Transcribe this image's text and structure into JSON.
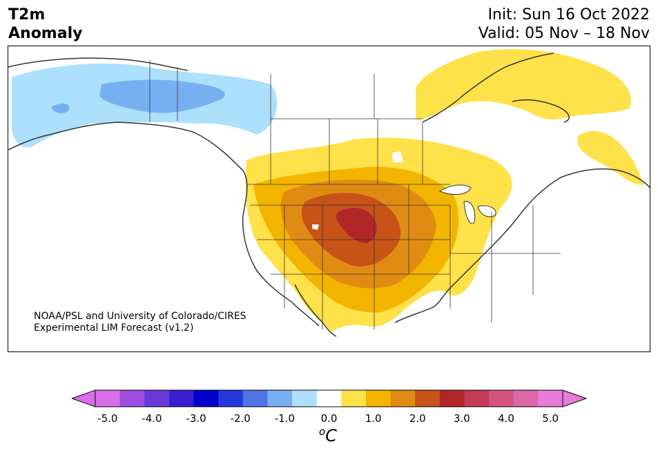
{
  "title": {
    "left_line1": "T2m",
    "left_line2": "Anomaly",
    "right_line1": "Init: Sun 16 Oct 2022",
    "right_line2": "Valid: 05 Nov – 18 Nov"
  },
  "credit": {
    "line1": "NOAA/PSL and University of Colorado/CIRES",
    "line2": "Experimental LIM Forecast (v1.2)"
  },
  "colorbar": {
    "unit_sup": "o",
    "unit_main": "C",
    "ticks": [
      "-5.0",
      "-4.0",
      "-3.0",
      "-2.0",
      "-1.0",
      "0.0",
      "1.0",
      "2.0",
      "3.0",
      "4.0",
      "5.0"
    ],
    "colors": [
      "#d86fe8",
      "#9c4fe0",
      "#6a39d9",
      "#3b1ed0",
      "#0000cd",
      "#2438da",
      "#4f74e6",
      "#77b0f2",
      "#ace0fb",
      "#ffffff",
      "#ffe14a",
      "#f3b400",
      "#e08c12",
      "#c75319",
      "#b2262a",
      "#c53a54",
      "#d3547e",
      "#dc68a8",
      "#e77dd8"
    ],
    "extend_low_color": "#d86fe8",
    "extend_high_color": "#e77dd8"
  }
}
